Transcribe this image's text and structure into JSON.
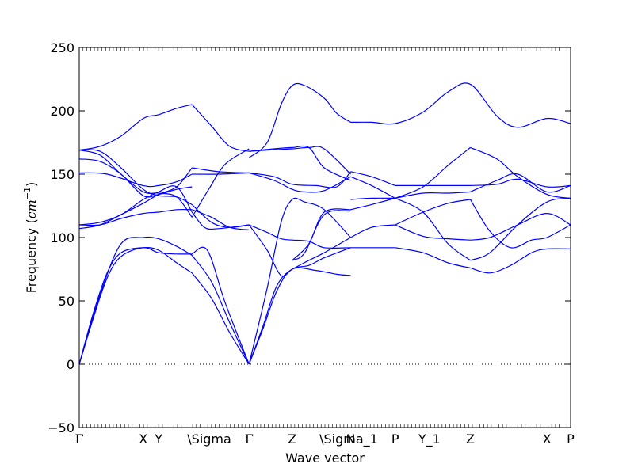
{
  "chart_data": {
    "type": "line",
    "title": "",
    "xlabel": "Wave vector",
    "ylabel": "Frequency",
    "ylabel_unit": "cm",
    "ylabel_unit_exp": "−1",
    "ylim": [
      -50,
      250
    ],
    "y_ticks": [
      -50,
      0,
      50,
      100,
      150,
      200,
      250
    ],
    "grid": false,
    "legend": "none",
    "line_color": "#0000ff",
    "zero_line": {
      "y": 0,
      "style": "dotted",
      "color": "#000000"
    },
    "x_path": {
      "xlim": [
        0,
        3.53
      ],
      "kpoints": [
        {
          "label": "Γ",
          "x": 0.0
        },
        {
          "label": "X",
          "x": 0.46
        },
        {
          "label": "Y",
          "x": 0.57
        },
        {
          "label": "\\Sigma",
          "x": 0.81
        },
        {
          "label": "Γ",
          "x": 1.22
        },
        {
          "label": "Z",
          "x": 1.53
        },
        {
          "label": "\\Sigma_1",
          "x": 1.76
        },
        {
          "label": "N",
          "x": 1.95
        },
        {
          "label": "P",
          "x": 2.27
        },
        {
          "label": "Y_1",
          "x": 2.47
        },
        {
          "label": "Z",
          "x": 2.81
        },
        {
          "label": "X",
          "x": 3.36
        },
        {
          "label": "P",
          "x": 3.53
        }
      ]
    },
    "series": [
      {
        "x": [
          0.0,
          0.1,
          0.2,
          0.3,
          0.46,
          0.57,
          0.7,
          0.81
        ],
        "y": [
          0,
          40,
          72,
          88,
          92,
          90,
          80,
          72
        ]
      },
      {
        "x": [
          0.81,
          0.95,
          1.08,
          1.22
        ],
        "y": [
          72,
          52,
          25,
          0
        ]
      },
      {
        "x": [
          0.0,
          0.1,
          0.2,
          0.3,
          0.46,
          0.57,
          0.7,
          0.81
        ],
        "y": [
          0,
          36,
          68,
          85,
          92,
          88,
          87,
          87
        ]
      },
      {
        "x": [
          0.81,
          0.92,
          1.05,
          1.22
        ],
        "y": [
          87,
          90,
          48,
          0
        ]
      },
      {
        "x": [
          0.0,
          0.15,
          0.3,
          0.46,
          0.57,
          0.7,
          0.81
        ],
        "y": [
          0,
          55,
          95,
          100,
          99,
          93,
          86
        ]
      },
      {
        "x": [
          0.81,
          0.95,
          1.08,
          1.22
        ],
        "y": [
          86,
          65,
          33,
          0
        ]
      },
      {
        "x": [
          1.22,
          1.35,
          1.45,
          1.53,
          1.62,
          1.76,
          1.95
        ],
        "y": [
          0,
          60,
          112,
          130,
          128,
          122,
          100
        ]
      },
      {
        "x": [
          1.22,
          1.32,
          1.42,
          1.53,
          1.65,
          1.76,
          1.95
        ],
        "y": [
          0,
          30,
          62,
          75,
          78,
          84,
          92
        ]
      },
      {
        "x": [
          1.22,
          1.32,
          1.42,
          1.53,
          1.7,
          1.85,
          1.95
        ],
        "y": [
          0,
          28,
          58,
          75,
          74,
          71,
          70
        ]
      },
      {
        "x": [
          1.53,
          1.65,
          1.76,
          1.95
        ],
        "y": [
          82,
          95,
          120,
          122
        ]
      },
      {
        "x": [
          1.53,
          1.62,
          1.76,
          1.95
        ],
        "y": [
          82,
          88,
          118,
          121
        ]
      },
      {
        "x": [
          0.0,
          0.15,
          0.3,
          0.46,
          0.57,
          0.7,
          0.81
        ],
        "y": [
          169,
          168,
          155,
          138,
          133,
          132,
          126
        ]
      },
      {
        "x": [
          0.81,
          0.95,
          1.08,
          1.22
        ],
        "y": [
          126,
          112,
          108,
          110
        ]
      },
      {
        "x": [
          0.0,
          0.15,
          0.3,
          0.46,
          0.57,
          0.7,
          0.81
        ],
        "y": [
          169,
          165,
          150,
          136,
          135,
          132,
          116
        ]
      },
      {
        "x": [
          0.81,
          0.93,
          1.05,
          1.22
        ],
        "y": [
          116,
          138,
          158,
          170
        ]
      },
      {
        "x": [
          0.0,
          0.15,
          0.3,
          0.46,
          0.57,
          0.7,
          0.81
        ],
        "y": [
          162,
          160,
          150,
          133,
          134,
          138,
          140
        ]
      },
      {
        "x": [
          0.0,
          0.2,
          0.46,
          0.57,
          0.7,
          0.81
        ],
        "y": [
          151,
          150,
          141,
          141,
          144,
          150
        ]
      },
      {
        "x": [
          0.81,
          1.0,
          1.22
        ],
        "y": [
          150,
          150,
          151
        ]
      },
      {
        "x": [
          0.0,
          0.15,
          0.3,
          0.46,
          0.57,
          0.7,
          0.81
        ],
        "y": [
          107,
          110,
          118,
          127,
          134,
          140,
          155
        ]
      },
      {
        "x": [
          0.81,
          1.0,
          1.22
        ],
        "y": [
          155,
          152,
          151
        ]
      },
      {
        "x": [
          0.0,
          0.15,
          0.3,
          0.46,
          0.57,
          0.7,
          0.81
        ],
        "y": [
          110,
          110,
          115,
          119,
          120,
          122,
          122
        ]
      },
      {
        "x": [
          0.81,
          0.95,
          1.08,
          1.22
        ],
        "y": [
          122,
          116,
          108,
          106
        ]
      },
      {
        "x": [
          0.0,
          0.15,
          0.3,
          0.46,
          0.57,
          0.7,
          0.81
        ],
        "y": [
          110,
          112,
          118,
          130,
          136,
          140,
          120
        ]
      },
      {
        "x": [
          0.81,
          0.9,
          1.0,
          1.22
        ],
        "y": [
          120,
          108,
          107,
          110
        ]
      },
      {
        "x": [
          0.0,
          0.15,
          0.3,
          0.46,
          0.57,
          0.7,
          0.81
        ],
        "y": [
          169,
          172,
          180,
          194,
          197,
          202,
          205
        ]
      },
      {
        "x": [
          0.81,
          0.95,
          1.08,
          1.22
        ],
        "y": [
          205,
          188,
          172,
          168
        ]
      },
      {
        "x": [
          1.22,
          1.35,
          1.45,
          1.53,
          1.62,
          1.76,
          1.85,
          1.95
        ],
        "y": [
          163,
          175,
          205,
          220,
          220,
          210,
          198,
          191
        ]
      },
      {
        "x": [
          1.95,
          2.1,
          2.27,
          2.47,
          2.65,
          2.81,
          3.0,
          3.15,
          3.36,
          3.53
        ],
        "y": [
          191,
          191,
          190,
          199,
          215,
          221,
          196,
          187,
          194,
          190
        ]
      },
      {
        "x": [
          1.22,
          1.35,
          1.53,
          1.65,
          1.76,
          1.95
        ],
        "y": [
          168,
          169,
          170,
          171,
          170,
          150
        ]
      },
      {
        "x": [
          1.22,
          1.4,
          1.53,
          1.65,
          1.76,
          1.95
        ],
        "y": [
          168,
          170,
          171,
          171,
          155,
          145
        ]
      },
      {
        "x": [
          1.22,
          1.4,
          1.53,
          1.62,
          1.76,
          1.95
        ],
        "y": [
          151,
          145,
          138,
          136,
          137,
          148
        ]
      },
      {
        "x": [
          1.22,
          1.4,
          1.53,
          1.7,
          1.85,
          1.95
        ],
        "y": [
          151,
          148,
          142,
          141,
          140,
          152
        ]
      },
      {
        "x": [
          1.95,
          2.1,
          2.27
        ],
        "y": [
          152,
          148,
          141
        ]
      },
      {
        "x": [
          1.95,
          2.1,
          2.27
        ],
        "y": [
          148,
          141,
          131
        ]
      },
      {
        "x": [
          1.95,
          2.1,
          2.27
        ],
        "y": [
          130,
          131,
          131
        ]
      },
      {
        "x": [
          1.95,
          2.1,
          2.27
        ],
        "y": [
          122,
          126,
          131
        ]
      },
      {
        "x": [
          1.22,
          1.35,
          1.45,
          1.53,
          1.65,
          1.76,
          1.95
        ],
        "y": [
          110,
          104,
          99,
          98,
          97,
          92,
          92
        ]
      },
      {
        "x": [
          1.22,
          1.35,
          1.45,
          1.53,
          1.65,
          1.76,
          1.95
        ],
        "y": [
          110,
          90,
          70,
          75,
          82,
          88,
          100
        ]
      },
      {
        "x": [
          1.95,
          2.1,
          2.27
        ],
        "y": [
          100,
          108,
          110
        ]
      },
      {
        "x": [
          1.95,
          2.1,
          2.27
        ],
        "y": [
          92,
          92,
          92
        ]
      },
      {
        "x": [
          2.27,
          2.47,
          2.65,
          2.81
        ],
        "y": [
          141,
          141,
          141,
          141
        ]
      },
      {
        "x": [
          2.27,
          2.47,
          2.65,
          2.81
        ],
        "y": [
          131,
          135,
          135,
          136
        ]
      },
      {
        "x": [
          2.27,
          2.47,
          2.65,
          2.81
        ],
        "y": [
          131,
          140,
          157,
          171
        ]
      },
      {
        "x": [
          2.27,
          2.47,
          2.65,
          2.81
        ],
        "y": [
          131,
          120,
          95,
          82
        ]
      },
      {
        "x": [
          2.27,
          2.47,
          2.65,
          2.81
        ],
        "y": [
          110,
          120,
          127,
          130
        ]
      },
      {
        "x": [
          2.27,
          2.47,
          2.65,
          2.81
        ],
        "y": [
          110,
          101,
          99,
          98
        ]
      },
      {
        "x": [
          2.27,
          2.47,
          2.65,
          2.81
        ],
        "y": [
          92,
          88,
          80,
          76
        ]
      },
      {
        "x": [
          2.81,
          3.0,
          3.15,
          3.36,
          3.53
        ],
        "y": [
          171,
          162,
          148,
          134,
          131
        ]
      },
      {
        "x": [
          2.81,
          3.0,
          3.15,
          3.36,
          3.53
        ],
        "y": [
          141,
          142,
          146,
          140,
          141
        ]
      },
      {
        "x": [
          2.81,
          3.0,
          3.15,
          3.36,
          3.53
        ],
        "y": [
          136,
          145,
          150,
          136,
          141
        ]
      },
      {
        "x": [
          2.81,
          2.95,
          3.1,
          3.25,
          3.36,
          3.53
        ],
        "y": [
          130,
          105,
          92,
          98,
          100,
          110
        ]
      },
      {
        "x": [
          2.81,
          2.95,
          3.15,
          3.36,
          3.53
        ],
        "y": [
          98,
          100,
          110,
          119,
          110
        ]
      },
      {
        "x": [
          2.81,
          2.95,
          3.15,
          3.36,
          3.53
        ],
        "y": [
          82,
          88,
          110,
          128,
          131
        ]
      },
      {
        "x": [
          2.81,
          2.95,
          3.1,
          3.25,
          3.36,
          3.53
        ],
        "y": [
          76,
          72,
          78,
          88,
          91,
          91
        ]
      }
    ]
  }
}
